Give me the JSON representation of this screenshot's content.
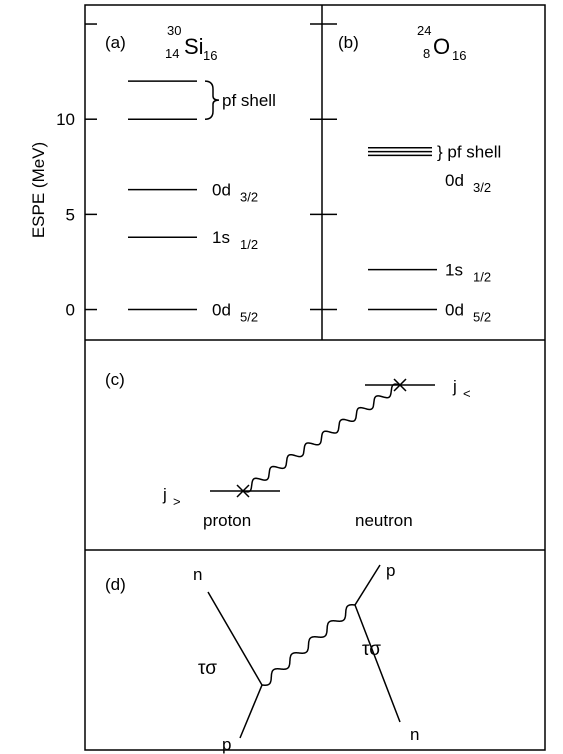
{
  "axis": {
    "label": "ESPE (MeV)",
    "ylim": [
      -1.6,
      16
    ],
    "yticks": [
      0,
      5,
      10
    ],
    "unlabeled_ticks": [
      15
    ]
  },
  "panels": [
    {
      "label": "(a)",
      "nucleus": {
        "mass": "30",
        "Z": "14",
        "symbol": "Si",
        "N": "16"
      },
      "levels": [
        {
          "orbit": "0d",
          "j": "5/2",
          "energy": 0
        },
        {
          "orbit": "1s",
          "j": "1/2",
          "energy": 3.8
        },
        {
          "orbit": "0d",
          "j": "3/2",
          "energy": 6.3
        }
      ],
      "pf_levels": [
        10,
        12
      ],
      "pf_label": "pf shell"
    },
    {
      "label": "(b)",
      "nucleus": {
        "mass": "24",
        "Z": "8",
        "symbol": "O",
        "N": "16"
      },
      "levels": [
        {
          "orbit": "0d",
          "j": "5/2",
          "energy": 0
        },
        {
          "orbit": "1s",
          "j": "1/2",
          "energy": 2.1
        }
      ],
      "unbound_label": {
        "orbit": "0d",
        "j": "3/2"
      },
      "pf_levels": [
        8.1,
        8.3,
        8.5
      ],
      "pf_label": "} pf shell"
    },
    {
      "label": "(c)",
      "j_greater": {
        "base": "j",
        "sub": ">"
      },
      "j_less": {
        "base": "j",
        "sub": "<"
      },
      "proton": "proton",
      "neutron": "neutron"
    },
    {
      "label": "(d)",
      "top_left": "n",
      "bottom_left": "p",
      "top_right": "p",
      "bottom_right": "n",
      "vertex_left": "τσ",
      "vertex_right": "τσ"
    }
  ]
}
